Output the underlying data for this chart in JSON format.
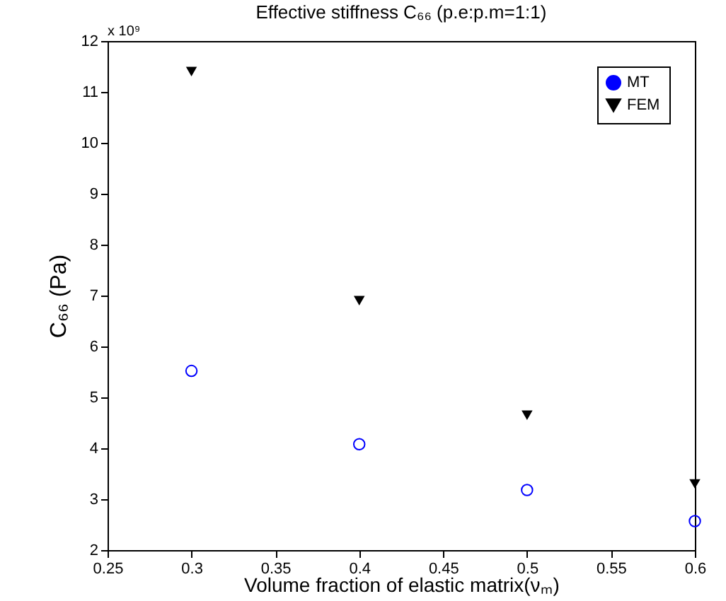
{
  "chart_data": {
    "type": "scatter",
    "title": "Effective stiffness C₆₆ (p.e:p.m=1:1)",
    "xlabel": "Volume fraction of elastic matrix(νₘ)",
    "ylabel": "C₆₆ (Pa)",
    "annotations": [
      "x 10⁹"
    ],
    "x": [
      0.3,
      0.4,
      0.5,
      0.6
    ],
    "series": [
      {
        "name": "MT",
        "color": "#0000ff",
        "marker": "circle",
        "values": [
          5.52,
          4.08,
          3.18,
          2.57
        ]
      },
      {
        "name": "FEM",
        "color": "#000000",
        "marker": "triangle",
        "values": [
          11.4,
          6.9,
          4.65,
          3.3
        ]
      }
    ],
    "xlim": [
      0.25,
      0.6
    ],
    "xticks": [
      0.25,
      0.3,
      0.35,
      0.4,
      0.45,
      0.5,
      0.55,
      0.6
    ],
    "ylim": [
      2,
      12
    ],
    "yticks": [
      2,
      3,
      4,
      5,
      6,
      7,
      8,
      9,
      10,
      11,
      12
    ],
    "grid": false,
    "legend": "top right"
  }
}
